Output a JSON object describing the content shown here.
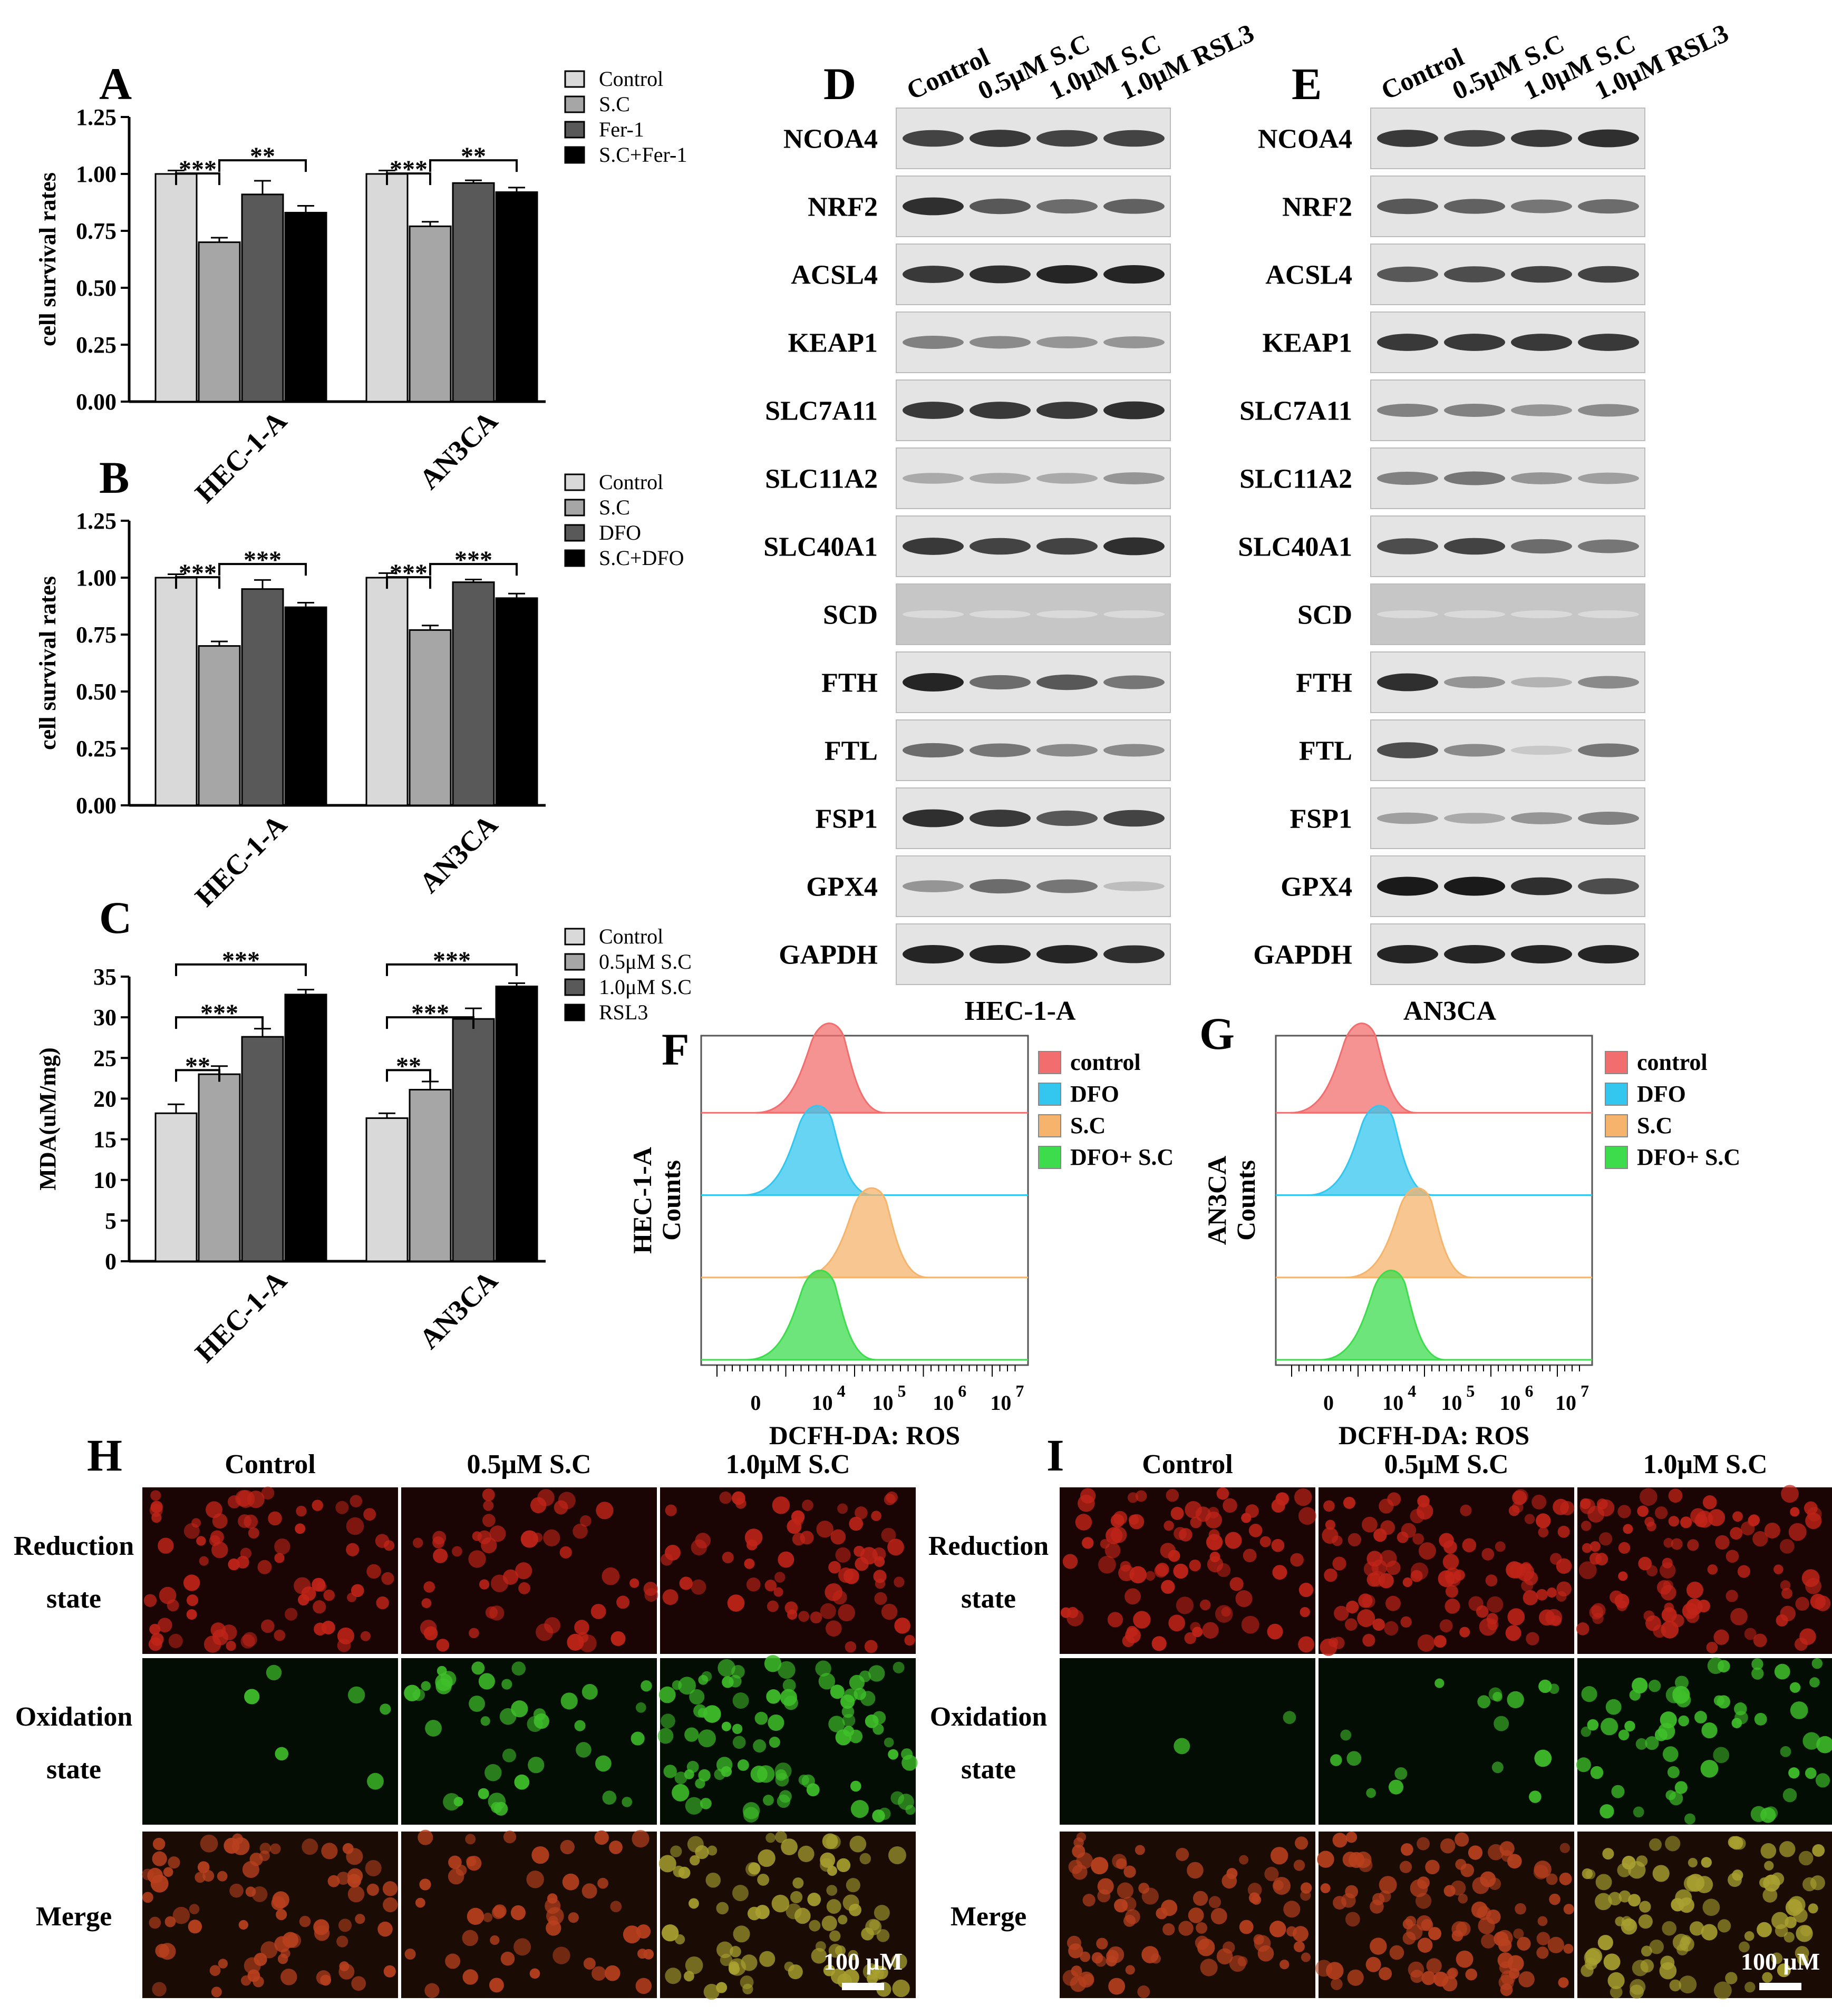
{
  "panels": {
    "A": "A",
    "B": "B",
    "C": "C",
    "D": "D",
    "E": "E",
    "F": "F",
    "G": "G",
    "H": "H",
    "I": "I"
  },
  "chart_data": [
    {
      "id": "A",
      "type": "bar",
      "ylabel": "cell survival rates",
      "ylim": [
        0,
        1.25
      ],
      "yticks": [
        "0.00",
        "0.25",
        "0.50",
        "0.75",
        "1.00",
        "1.25"
      ],
      "categories": [
        "HEC-1-A",
        "AN3CA"
      ],
      "series": [
        {
          "name": "Control",
          "color": "#d9d9d9",
          "values": [
            1.0,
            1.0
          ],
          "err": [
            0.015,
            0.015
          ]
        },
        {
          "name": "S.C",
          "color": "#a6a6a6",
          "values": [
            0.7,
            0.77
          ],
          "err": [
            0.02,
            0.02
          ]
        },
        {
          "name": "Fer-1",
          "color": "#595959",
          "values": [
            0.91,
            0.96
          ],
          "err": [
            0.06,
            0.012
          ]
        },
        {
          "name": "S.C+Fer-1",
          "color": "#000000",
          "values": [
            0.83,
            0.92
          ],
          "err": [
            0.03,
            0.02
          ]
        }
      ],
      "significance": [
        {
          "cat": 0,
          "from": 0,
          "to": 1,
          "label": "***"
        },
        {
          "cat": 0,
          "from": 1,
          "to": 3,
          "label": "**"
        },
        {
          "cat": 1,
          "from": 0,
          "to": 1,
          "label": "***"
        },
        {
          "cat": 1,
          "from": 1,
          "to": 3,
          "label": "**"
        }
      ]
    },
    {
      "id": "B",
      "type": "bar",
      "ylabel": "cell survival rates",
      "ylim": [
        0,
        1.25
      ],
      "yticks": [
        "0.00",
        "0.25",
        "0.50",
        "0.75",
        "1.00",
        "1.25"
      ],
      "categories": [
        "HEC-1-A",
        "AN3CA"
      ],
      "series": [
        {
          "name": "Control",
          "color": "#d9d9d9",
          "values": [
            1.0,
            1.0
          ],
          "err": [
            0.015,
            0.02
          ]
        },
        {
          "name": "S.C",
          "color": "#a6a6a6",
          "values": [
            0.7,
            0.77
          ],
          "err": [
            0.02,
            0.02
          ]
        },
        {
          "name": "DFO",
          "color": "#595959",
          "values": [
            0.95,
            0.98
          ],
          "err": [
            0.04,
            0.012
          ]
        },
        {
          "name": "S.C+DFO",
          "color": "#000000",
          "values": [
            0.87,
            0.91
          ],
          "err": [
            0.02,
            0.02
          ]
        }
      ],
      "significance": [
        {
          "cat": 0,
          "from": 0,
          "to": 1,
          "label": "***"
        },
        {
          "cat": 0,
          "from": 1,
          "to": 3,
          "label": "***"
        },
        {
          "cat": 1,
          "from": 0,
          "to": 1,
          "label": "***"
        },
        {
          "cat": 1,
          "from": 1,
          "to": 3,
          "label": "***"
        }
      ]
    },
    {
      "id": "C",
      "type": "bar",
      "ylabel": "MDA(uM/mg)",
      "ylim": [
        0,
        35
      ],
      "yticks": [
        "0",
        "5",
        "10",
        "15",
        "20",
        "25",
        "30",
        "35"
      ],
      "categories": [
        "HEC-1-A",
        "AN3CA"
      ],
      "series": [
        {
          "name": "Control",
          "color": "#d9d9d9",
          "values": [
            18.2,
            17.6
          ],
          "err": [
            1.1,
            0.6
          ]
        },
        {
          "name": "0.5μM S.C",
          "color": "#a6a6a6",
          "values": [
            23.0,
            21.1
          ],
          "err": [
            1.0,
            1.0
          ]
        },
        {
          "name": "1.0μM  S.C",
          "color": "#595959",
          "values": [
            27.6,
            29.8
          ],
          "err": [
            1.0,
            1.3
          ]
        },
        {
          "name": "RSL3",
          "color": "#000000",
          "values": [
            32.8,
            33.8
          ],
          "err": [
            0.6,
            0.4
          ]
        }
      ],
      "significance": [
        {
          "cat": 0,
          "from": 0,
          "to": 1,
          "label": "**"
        },
        {
          "cat": 0,
          "from": 0,
          "to": 2,
          "label": "***"
        },
        {
          "cat": 0,
          "from": 0,
          "to": 3,
          "label": "***"
        },
        {
          "cat": 1,
          "from": 0,
          "to": 1,
          "label": "**"
        },
        {
          "cat": 1,
          "from": 0,
          "to": 2,
          "label": "***"
        },
        {
          "cat": 1,
          "from": 0,
          "to": 3,
          "label": "***"
        }
      ]
    },
    {
      "id": "F",
      "type": "area",
      "title": "HEC-1-A",
      "xlabel": "DCFH-DA: ROS",
      "ylabel": "Counts",
      "ylabel_prefix": "HEC-1-A",
      "xticks": [
        "0",
        "10",
        "10",
        "10",
        "10"
      ],
      "xtick_exponents": [
        "",
        "4",
        "5",
        "6",
        "7"
      ],
      "series": [
        {
          "name": "control",
          "color": "#f26d6d",
          "peak_log": 4.15
        },
        {
          "name": "DFO",
          "color": "#33c6ee",
          "peak_log": 3.95
        },
        {
          "name": "S.C",
          "color": "#f6b36b",
          "peak_log": 4.85
        },
        {
          "name": "DFO+ S.C",
          "color": "#3ddc4d",
          "peak_log": 4.0
        }
      ]
    },
    {
      "id": "G",
      "type": "area",
      "title": "AN3CA",
      "xlabel": "DCFH-DA: ROS",
      "ylabel": "Counts",
      "ylabel_prefix": "AN3CA",
      "xticks": [
        "0",
        "10",
        "10",
        "10",
        "10"
      ],
      "xtick_exponents": [
        "",
        "4",
        "5",
        "6",
        "7"
      ],
      "series": [
        {
          "name": "control",
          "color": "#f26d6d",
          "peak_log": 3.5
        },
        {
          "name": "DFO",
          "color": "#33c6ee",
          "peak_log": 3.8
        },
        {
          "name": "S.C",
          "color": "#f6b36b",
          "peak_log": 4.45
        },
        {
          "name": "DFO+ S.C",
          "color": "#3ddc4d",
          "peak_log": 4.0
        }
      ]
    }
  ],
  "western": {
    "lanes": [
      "Control",
      "0.5μM S.C",
      "1.0μM S.C",
      "1.0μM RSL3"
    ],
    "proteins": [
      "NCOA4",
      "NRF2",
      "ACSL4",
      "KEAP1",
      "SLC7A11",
      "SLC11A2",
      "SLC40A1",
      "SCD",
      "FTH",
      "FTL",
      "FSP1",
      "GPX4",
      "GAPDH"
    ],
    "D": {
      "cell_line": "HEC-1-A",
      "intensity": [
        [
          0.8,
          0.85,
          0.8,
          0.8
        ],
        [
          0.9,
          0.7,
          0.6,
          0.65
        ],
        [
          0.85,
          0.9,
          0.95,
          0.95
        ],
        [
          0.5,
          0.45,
          0.4,
          0.4
        ],
        [
          0.85,
          0.85,
          0.85,
          0.9
        ],
        [
          0.3,
          0.3,
          0.3,
          0.4
        ],
        [
          0.85,
          0.8,
          0.8,
          0.9
        ],
        [
          0.05,
          0.05,
          0.05,
          0.05
        ],
        [
          0.95,
          0.6,
          0.7,
          0.55
        ],
        [
          0.6,
          0.55,
          0.45,
          0.45
        ],
        [
          0.9,
          0.85,
          0.7,
          0.8
        ],
        [
          0.4,
          0.6,
          0.55,
          0.2
        ],
        [
          0.95,
          0.95,
          0.95,
          0.9
        ]
      ]
    },
    "E": {
      "cell_line": "AN3CA",
      "intensity": [
        [
          0.85,
          0.8,
          0.85,
          0.9
        ],
        [
          0.7,
          0.65,
          0.55,
          0.6
        ],
        [
          0.7,
          0.75,
          0.8,
          0.8
        ],
        [
          0.85,
          0.85,
          0.85,
          0.85
        ],
        [
          0.5,
          0.5,
          0.4,
          0.45
        ],
        [
          0.5,
          0.55,
          0.4,
          0.35
        ],
        [
          0.75,
          0.8,
          0.6,
          0.55
        ],
        [
          0.05,
          0.05,
          0.05,
          0.05
        ],
        [
          0.9,
          0.4,
          0.25,
          0.45
        ],
        [
          0.75,
          0.45,
          0.15,
          0.55
        ],
        [
          0.35,
          0.3,
          0.4,
          0.5
        ],
        [
          1.0,
          1.0,
          0.9,
          0.75
        ],
        [
          0.95,
          0.95,
          0.95,
          0.95
        ]
      ]
    }
  },
  "microscopy": {
    "H": {
      "columns": [
        "Control",
        "0.5μM S.C",
        "1.0μM S.C"
      ],
      "scale_bar": "100 μM",
      "red": [
        0.7,
        0.45,
        0.6
      ],
      "green": [
        0.05,
        0.35,
        0.8
      ]
    },
    "I": {
      "columns": [
        "Control",
        "0.5μM S.C",
        "1.0μM S.C"
      ],
      "scale_bar": "100 μM",
      "red": [
        0.75,
        0.9,
        0.85
      ],
      "green": [
        0.02,
        0.15,
        0.55
      ]
    },
    "rows": [
      {
        "line1": "Reduction",
        "line2": "state"
      },
      {
        "line1": "Oxidation",
        "line2": "state"
      },
      {
        "line1": "Merge",
        "line2": ""
      }
    ]
  }
}
